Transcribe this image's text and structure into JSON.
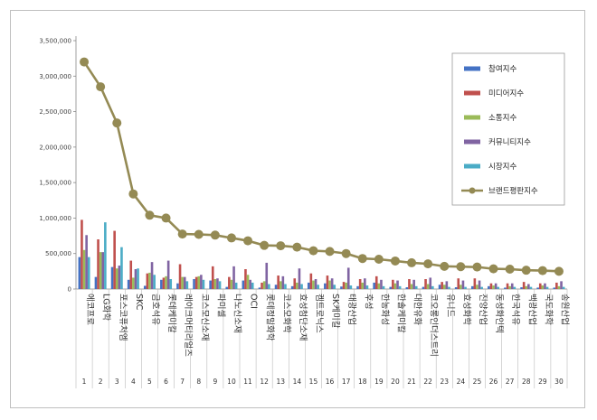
{
  "chart_data": {
    "type": "bar",
    "ylim": [
      0,
      3500000
    ],
    "yticks": [
      "0",
      "500,000",
      "1,000,000",
      "1,500,000",
      "2,000,000",
      "2,500,000",
      "3,000,000",
      "3,500,000"
    ],
    "grid": false,
    "legend_position": "top-right",
    "categories": [
      "에코프로",
      "LG화학",
      "포스코퓨처엠",
      "SKC",
      "금호석유",
      "롯데케미칼",
      "레이크머티리얼즈",
      "코스모신소재",
      "파미셀",
      "나노신소재",
      "OCI",
      "롯데정밀화학",
      "코스모화학",
      "효성첨단소재",
      "켐트로닉스",
      "SK케미칼",
      "태광산업",
      "후성",
      "한농화성",
      "한솔케미칼",
      "대한유화",
      "코오롱인더스트리",
      "유니드",
      "효성화학",
      "진양산업",
      "동성화인텍",
      "한국석유",
      "백광산업",
      "국도화학",
      "송원산업"
    ],
    "ranks": [
      "1",
      "2",
      "3",
      "4",
      "5",
      "6",
      "7",
      "8",
      "9",
      "10",
      "11",
      "12",
      "13",
      "14",
      "15",
      "16",
      "17",
      "18",
      "19",
      "20",
      "21",
      "22",
      "23",
      "24",
      "25",
      "26",
      "27",
      "28",
      "29",
      "30"
    ],
    "series": [
      {
        "name": "참여지수",
        "color": "#4472C4",
        "values": [
          450000,
          170000,
          310000,
          130000,
          45000,
          130000,
          80000,
          140000,
          120000,
          30000,
          120000,
          20000,
          60000,
          40000,
          90000,
          80000,
          35000,
          40000,
          90000,
          30000,
          25000,
          30000,
          60000,
          25000,
          40000,
          40000,
          20000,
          25000,
          20000,
          20000
        ]
      },
      {
        "name": "미디어지수",
        "color": "#C0504D",
        "values": [
          975000,
          700000,
          820000,
          400000,
          220000,
          160000,
          350000,
          170000,
          320000,
          170000,
          280000,
          90000,
          190000,
          150000,
          220000,
          190000,
          100000,
          140000,
          180000,
          130000,
          140000,
          140000,
          100000,
          150000,
          150000,
          80000,
          80000,
          100000,
          80000,
          90000
        ]
      },
      {
        "name": "소통지수",
        "color": "#9BBB59",
        "values": [
          550000,
          520000,
          290000,
          160000,
          230000,
          180000,
          170000,
          180000,
          140000,
          130000,
          200000,
          110000,
          110000,
          90000,
          120000,
          120000,
          90000,
          90000,
          80000,
          80000,
          70000,
          70000,
          60000,
          60000,
          60000,
          50000,
          40000,
          40000,
          50000,
          40000
        ]
      },
      {
        "name": "커뮤니티지수",
        "color": "#8064A2",
        "values": [
          760000,
          520000,
          330000,
          280000,
          380000,
          400000,
          170000,
          200000,
          150000,
          320000,
          130000,
          370000,
          180000,
          290000,
          140000,
          150000,
          300000,
          150000,
          130000,
          120000,
          130000,
          160000,
          110000,
          120000,
          120000,
          80000,
          80000,
          70000,
          80000,
          110000
        ]
      },
      {
        "name": "시장지수",
        "color": "#4BACC6",
        "values": [
          450000,
          940000,
          590000,
          290000,
          200000,
          140000,
          110000,
          130000,
          110000,
          90000,
          90000,
          70000,
          70000,
          70000,
          60000,
          60000,
          50000,
          50000,
          40000,
          40000,
          40000,
          40000,
          30000,
          30000,
          30000,
          30000,
          30000,
          30000,
          30000,
          30000
        ]
      },
      {
        "name": "브랜드평판지수",
        "color": "#948A54",
        "type": "line",
        "values": [
          3200000,
          2850000,
          2340000,
          1340000,
          1040000,
          1000000,
          775000,
          770000,
          760000,
          720000,
          680000,
          615000,
          610000,
          590000,
          540000,
          530000,
          500000,
          430000,
          420000,
          395000,
          370000,
          355000,
          320000,
          315000,
          310000,
          285000,
          280000,
          265000,
          260000,
          250000
        ]
      }
    ]
  }
}
